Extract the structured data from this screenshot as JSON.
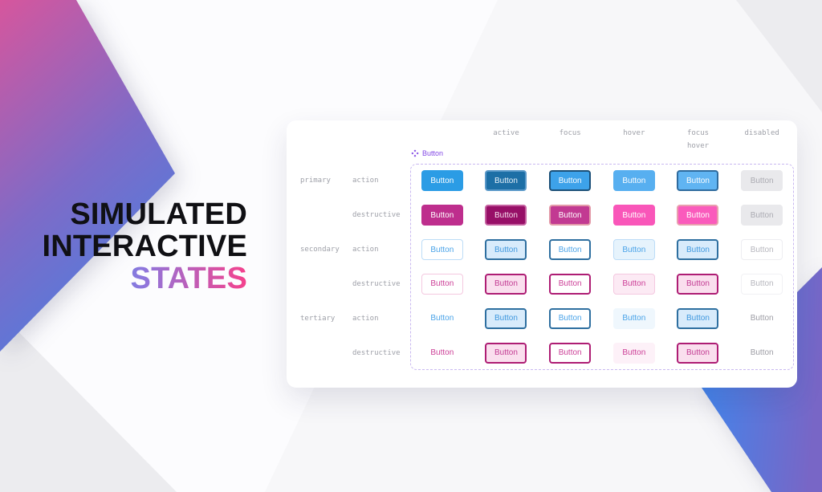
{
  "hero": {
    "title_lines": [
      "SIMULATED",
      "INTERACTIVE"
    ],
    "accent_line": "STATES"
  },
  "panel": {
    "component_label": "Button",
    "button_label": "Button",
    "state_columns": [
      "active",
      "focus",
      "hover",
      "focus\nhover",
      "disabled"
    ],
    "rows": [
      {
        "tier": "primary",
        "tier_label": "primary",
        "variant": "action",
        "cells": [
          {
            "state": "default",
            "bg": "#2B9CE5",
            "text": "#FFFFFF",
            "border": ""
          },
          {
            "state": "active",
            "bg": "#1D6FA6",
            "text": "#EAF3FA",
            "border": "2px solid #5B99C9"
          },
          {
            "state": "focus",
            "bg": "#3DA2EA",
            "text": "#FFFFFF",
            "border": "2px solid #1C5078"
          },
          {
            "state": "hover",
            "bg": "#57AFF0",
            "text": "#FFFFFF",
            "border": ""
          },
          {
            "state": "focus-hover",
            "bg": "#60B4F2",
            "text": "#FFFFFF",
            "border": "2px solid #2F6B9E"
          },
          {
            "state": "disabled",
            "bg": "#E9E9EC",
            "text": "#ABABB2",
            "border": ""
          }
        ]
      },
      {
        "tier": "primary",
        "tier_label": "",
        "variant": "destructive",
        "cells": [
          {
            "state": "default",
            "bg": "#BE2E8D",
            "text": "#FFFFFF",
            "border": ""
          },
          {
            "state": "active",
            "bg": "#970F67",
            "text": "#F7E0EE",
            "border": "2px solid #C45F9F"
          },
          {
            "state": "focus",
            "bg": "#C23A92",
            "text": "#FFFFFF",
            "border": "2px solid #E39AA8"
          },
          {
            "state": "hover",
            "bg": "#F956B9",
            "text": "#FFFFFF",
            "border": ""
          },
          {
            "state": "focus-hover",
            "bg": "#FA5BBC",
            "text": "#FFFFFF",
            "border": "2px solid #E89FAE"
          },
          {
            "state": "disabled",
            "bg": "#E9E9EC",
            "text": "#ABABB2",
            "border": ""
          }
        ]
      },
      {
        "tier": "secondary",
        "tier_label": "secondary",
        "variant": "action",
        "cells": [
          {
            "state": "default",
            "bg": "#FFFFFF",
            "text": "#4AA3E8",
            "border": "1px solid #BCDCF7"
          },
          {
            "state": "active",
            "bg": "#D8EBFB",
            "text": "#3E97DE",
            "border": "2px solid #2E6FA0"
          },
          {
            "state": "focus",
            "bg": "#FFFFFF",
            "text": "#4AA3E8",
            "border": "2px solid #2E6FA0"
          },
          {
            "state": "hover",
            "bg": "#E6F3FC",
            "text": "#4AA3E8",
            "border": "1px solid #BCDCF7"
          },
          {
            "state": "focus-hover",
            "bg": "#D8EBFB",
            "text": "#3E97DE",
            "border": "2px solid #2E6FA0"
          },
          {
            "state": "disabled",
            "bg": "#FFFFFF",
            "text": "#B6B6BD",
            "border": "1px solid #EDEDF1"
          }
        ]
      },
      {
        "tier": "secondary",
        "tier_label": "",
        "variant": "destructive",
        "cells": [
          {
            "state": "default",
            "bg": "#FFFFFF",
            "text": "#CC3F97",
            "border": "1px solid #F4C8E0"
          },
          {
            "state": "active",
            "bg": "#FADFEE",
            "text": "#C23A92",
            "border": "2px solid #AE1D74"
          },
          {
            "state": "focus",
            "bg": "#FFFFFF",
            "text": "#CC3F97",
            "border": "2px solid #AE1D74"
          },
          {
            "state": "hover",
            "bg": "#FCEAF4",
            "text": "#CC3F97",
            "border": "1px solid #F4C8E0"
          },
          {
            "state": "focus-hover",
            "bg": "#FADFEE",
            "text": "#C23A92",
            "border": "2px solid #AE1D74"
          },
          {
            "state": "disabled",
            "bg": "#FFFFFF",
            "text": "#B6B6BD",
            "border": "1px solid #F1F1F4"
          }
        ]
      },
      {
        "tier": "tertiary",
        "tier_label": "tertiary",
        "variant": "action",
        "cells": [
          {
            "state": "default",
            "bg": "transparent",
            "text": "#4AA3E8",
            "border": ""
          },
          {
            "state": "active",
            "bg": "#D8EBFB",
            "text": "#3E97DE",
            "border": "2px solid #2E6FA0"
          },
          {
            "state": "focus",
            "bg": "#FFFFFF",
            "text": "#4AA3E8",
            "border": "2px solid #2E6FA0"
          },
          {
            "state": "hover",
            "bg": "#EFF7FD",
            "text": "#4AA3E8",
            "border": ""
          },
          {
            "state": "focus-hover",
            "bg": "#D8EBFB",
            "text": "#3E97DE",
            "border": "2px solid #2E6FA0"
          },
          {
            "state": "disabled",
            "bg": "transparent",
            "text": "#9C9CA4",
            "border": ""
          }
        ]
      },
      {
        "tier": "tertiary",
        "tier_label": "",
        "variant": "destructive",
        "cells": [
          {
            "state": "default",
            "bg": "transparent",
            "text": "#CC3F97",
            "border": ""
          },
          {
            "state": "active",
            "bg": "#FADFEE",
            "text": "#C23A92",
            "border": "2px solid #AE1D74"
          },
          {
            "state": "focus",
            "bg": "#FFFFFF",
            "text": "#CC3F97",
            "border": "2px solid #AE1D74"
          },
          {
            "state": "hover",
            "bg": "#FDF1F8",
            "text": "#CC3F97",
            "border": ""
          },
          {
            "state": "focus-hover",
            "bg": "#FADFEE",
            "text": "#C23A92",
            "border": "2px solid #AE1D74"
          },
          {
            "state": "disabled",
            "bg": "transparent",
            "text": "#9C9CA4",
            "border": ""
          }
        ]
      }
    ]
  },
  "theme": {
    "accent_from": "#2CA0F2",
    "accent_mid": "#8F76DC",
    "accent_to": "#F5418C",
    "tl_from": "#D6569D",
    "tl_mid": "#7D6BC8",
    "tl_to": "#3A85E8",
    "br_from": "#3E87EE",
    "br_to": "#7866C6",
    "component_purple": "#8247E5",
    "frame_dash": "#C9B8F0",
    "label_gray": "#9EA0A8",
    "title_color": "#101014"
  }
}
